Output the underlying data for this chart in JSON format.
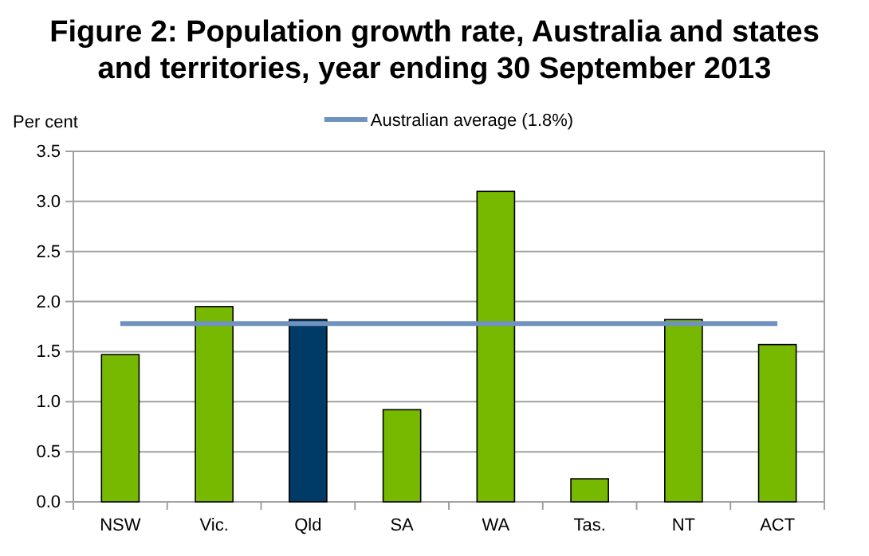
{
  "chart_data": {
    "type": "bar",
    "title": "Figure 2: Population growth rate, Australia and states and territories, year ending 30 September 2013",
    "ylabel": "Per cent",
    "categories": [
      "NSW",
      "Vic.",
      "Qld",
      "SA",
      "WA",
      "Tas.",
      "NT",
      "ACT"
    ],
    "series": [
      {
        "colors": [
          "#77b800",
          "#77b800",
          "#003a66",
          "#77b800",
          "#77b800",
          "#77b800",
          "#77b800",
          "#77b800"
        ],
        "values": [
          1.47,
          1.95,
          1.82,
          0.92,
          3.1,
          0.23,
          1.82,
          1.57
        ]
      },
      {
        "type": "line",
        "name": "Australian average (1.8%)",
        "color": "#7092be",
        "values": [
          1.78,
          1.78,
          1.78,
          1.78,
          1.78,
          1.78,
          1.78,
          1.78
        ]
      }
    ],
    "ylim": [
      0,
      3.5
    ],
    "yticks": [
      {
        "value": 0,
        "label": "0.0"
      },
      {
        "value": 0.5,
        "label": "0.5"
      },
      {
        "value": 1,
        "label": "1.0"
      },
      {
        "value": 1.5,
        "label": "1.5"
      },
      {
        "value": 2,
        "label": "2.0"
      },
      {
        "value": 2.5,
        "label": "2.5"
      },
      {
        "value": 3,
        "label": "3.0"
      },
      {
        "value": 3.5,
        "label": "3.5"
      }
    ],
    "grid": "y",
    "legend": "top"
  }
}
